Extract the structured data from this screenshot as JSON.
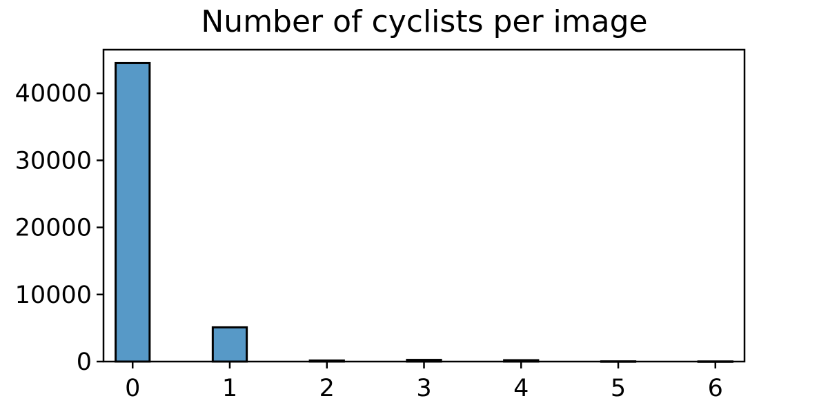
{
  "chart_data": {
    "type": "bar",
    "title": "Number of cyclists per image",
    "xlabel": "",
    "ylabel": "",
    "categories": [
      0,
      1,
      2,
      3,
      4,
      5,
      6
    ],
    "values": [
      44500,
      5100,
      150,
      250,
      200,
      30,
      20
    ],
    "xlim": [
      -0.3,
      6.3
    ],
    "ylim": [
      0,
      46500
    ],
    "xticks": [
      "0",
      "1",
      "2",
      "3",
      "4",
      "5",
      "6"
    ],
    "yticks": [
      "0",
      "10000",
      "20000",
      "30000",
      "40000"
    ],
    "ytick_values": [
      0,
      10000,
      20000,
      30000,
      40000
    ],
    "bar_width": 0.35,
    "grid": false,
    "legend": "none",
    "colors": {
      "bar_fill": "#5799c7",
      "bar_edge": "#000000",
      "axes": "#000000"
    }
  }
}
